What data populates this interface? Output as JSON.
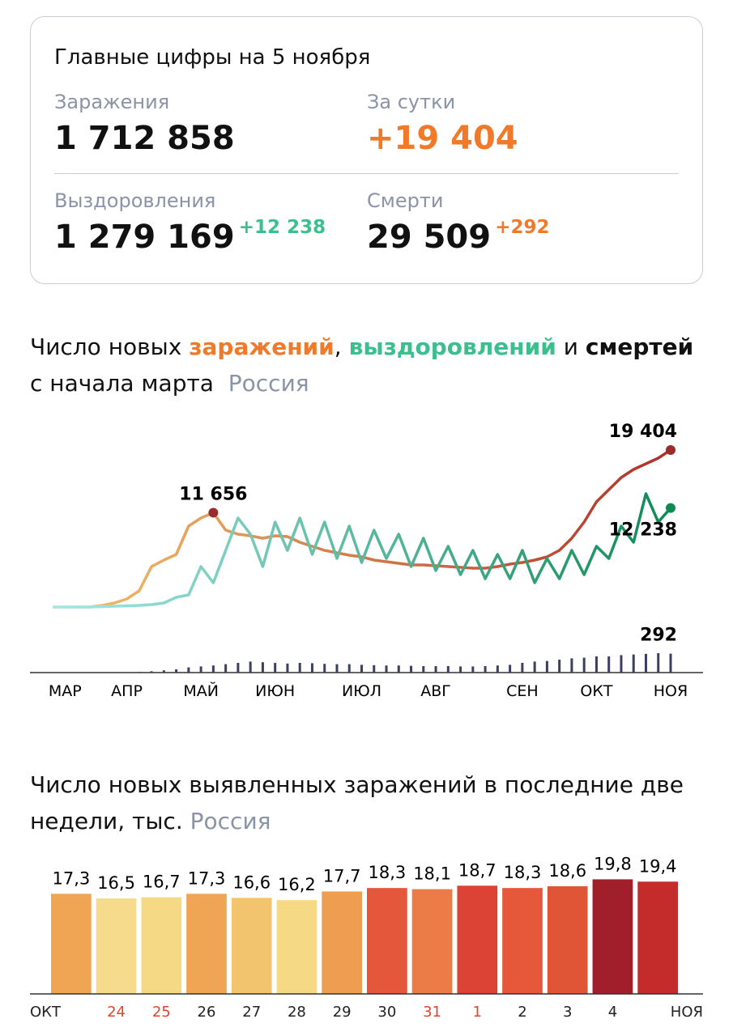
{
  "summary": {
    "title": "Главные цифры на 5 ноября",
    "items": [
      {
        "label": "Заражения",
        "value": "1 712 858"
      },
      {
        "label": "За сутки",
        "value": "+19 404"
      },
      {
        "label": "Выздоровления",
        "value": "1 279 169",
        "delta": "+12 238"
      },
      {
        "label": "Смерти",
        "value": "29 509",
        "delta": "+292"
      }
    ]
  },
  "chart_data": [
    {
      "type": "line",
      "title": [
        "Число новых ",
        "заражений",
        ", ",
        "выздоровлений",
        " и ",
        "смертей"
      ],
      "subtitle": "с начала марта",
      "region": "Россия",
      "categories": [
        null,
        "МАР",
        null,
        null,
        null,
        null,
        "АПР",
        null,
        null,
        null,
        null,
        null,
        "МАЙ",
        null,
        null,
        null,
        null,
        null,
        "ИЮН",
        null,
        null,
        null,
        null,
        null,
        null,
        "ИЮЛ",
        null,
        null,
        null,
        null,
        null,
        "АВГ",
        null,
        null,
        null,
        null,
        null,
        null,
        "СЕН",
        null,
        null,
        null,
        null,
        null,
        "ОКТ",
        null,
        null,
        null,
        null,
        null,
        "НОЯ"
      ],
      "ylim": [
        0,
        20000
      ],
      "y2lim": [
        0,
        300
      ],
      "series": [
        {
          "name": "заражений",
          "colors": [
            "#f5c36b",
            "#b0302a"
          ],
          "values": [
            0,
            0,
            0,
            0,
            200,
            500,
            1000,
            2000,
            5000,
            5800,
            6500,
            10000,
            11000,
            11656,
            9500,
            9000,
            8800,
            8500,
            8800,
            8700,
            8000,
            7500,
            7000,
            6700,
            6400,
            6200,
            5800,
            5600,
            5400,
            5200,
            5200,
            5100,
            5000,
            4900,
            4800,
            4800,
            5000,
            5300,
            5500,
            5800,
            6200,
            7000,
            8500,
            10500,
            13000,
            14500,
            16000,
            17000,
            17700,
            18400,
            19404
          ]
        },
        {
          "name": "выздоровлений",
          "colors": [
            "#a6e8e8",
            "#0f8a55"
          ],
          "values": [
            0,
            0,
            0,
            0,
            50,
            100,
            150,
            200,
            300,
            500,
            1200,
            1500,
            5000,
            3000,
            7000,
            11000,
            9000,
            5000,
            10500,
            7000,
            11000,
            6500,
            10500,
            6000,
            10000,
            5500,
            9500,
            6000,
            9000,
            5000,
            8500,
            4500,
            7500,
            4000,
            7000,
            3500,
            6500,
            3500,
            7000,
            3000,
            6000,
            3500,
            7000,
            4000,
            7500,
            6000,
            10000,
            8000,
            14000,
            10500,
            12238
          ]
        },
        {
          "name": "смертей",
          "color": "#3b4060",
          "axis": "y2",
          "values": [
            0,
            0,
            0,
            0,
            0,
            1,
            5,
            10,
            20,
            35,
            50,
            80,
            95,
            110,
            130,
            150,
            170,
            160,
            150,
            140,
            150,
            145,
            135,
            130,
            130,
            120,
            115,
            110,
            110,
            105,
            100,
            100,
            100,
            95,
            95,
            100,
            110,
            120,
            150,
            170,
            180,
            200,
            220,
            230,
            250,
            250,
            270,
            280,
            290,
            300,
            292
          ]
        }
      ],
      "annotations": [
        {
          "text": "11 656",
          "value": 11656,
          "series": "заражений"
        },
        {
          "text": "19 404",
          "value": 19404,
          "series": "заражений"
        },
        {
          "text": "12 238",
          "value": 12238,
          "series": "выздоровлений"
        },
        {
          "text": "292",
          "value": 292,
          "series": "смертей"
        }
      ]
    },
    {
      "type": "bar",
      "title": "Число новых выявленных заражений в последние две недели, тыс.",
      "region": "Россия",
      "categories": [
        "ОКТ",
        "24",
        "25",
        "26",
        "27",
        "28",
        "29",
        "30",
        "31",
        "1",
        "2",
        "3",
        "4",
        "НОЯ"
      ],
      "label_colors": [
        "#222",
        "#e0452f",
        "#e0452f",
        "#222",
        "#222",
        "#222",
        "#222",
        "#222",
        "#e0452f",
        "#e0452f",
        "#222",
        "#222",
        "#222",
        "#222"
      ],
      "values": [
        17.3,
        16.5,
        16.7,
        17.3,
        16.6,
        16.2,
        17.7,
        18.3,
        18.1,
        18.7,
        18.3,
        18.6,
        19.8,
        19.4
      ],
      "value_labels": [
        "17,3",
        "16,5",
        "16,7",
        "17,3",
        "16,6",
        "16,2",
        "17,7",
        "18,3",
        "18,1",
        "18,7",
        "18,3",
        "18,6",
        "19,8",
        "19,4"
      ],
      "colors": [
        "#f0a555",
        "#f6db8c",
        "#f6d985",
        "#f0a555",
        "#f3c46e",
        "#f6d985",
        "#ef9d50",
        "#e5573a",
        "#eb7c47",
        "#dd4334",
        "#e5583a",
        "#e05535",
        "#a01f2a",
        "#c42b2b"
      ],
      "ylim": [
        0,
        20
      ]
    }
  ]
}
